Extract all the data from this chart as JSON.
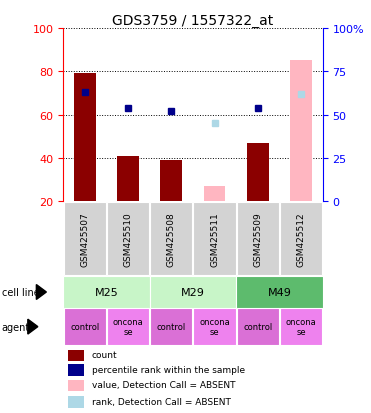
{
  "title": "GDS3759 / 1557322_at",
  "samples": [
    "GSM425507",
    "GSM425510",
    "GSM425508",
    "GSM425511",
    "GSM425509",
    "GSM425512"
  ],
  "counts": [
    79,
    41,
    39,
    null,
    47,
    null
  ],
  "percentile_ranks": [
    63,
    54,
    52,
    null,
    54,
    null
  ],
  "absent_counts": [
    null,
    null,
    null,
    27,
    null,
    85
  ],
  "absent_ranks": [
    null,
    null,
    null,
    45,
    null,
    62
  ],
  "cell_line_labels": [
    "M25",
    "M29",
    "M49"
  ],
  "cell_line_spans": [
    [
      0,
      2
    ],
    [
      2,
      4
    ],
    [
      4,
      6
    ]
  ],
  "cell_line_colors": [
    "#c8f5c8",
    "#c8f5c8",
    "#5dbb6d"
  ],
  "agent_labels": [
    "control",
    "oncona\nse",
    "control",
    "oncona\nse",
    "control",
    "oncona\nse"
  ],
  "agent_colors": [
    "#da70d6",
    "#ee82ee",
    "#da70d6",
    "#ee82ee",
    "#da70d6",
    "#ee82ee"
  ],
  "ylim_left": [
    20,
    100
  ],
  "ylim_right": [
    0,
    100
  ],
  "yticks_left": [
    20,
    40,
    60,
    80,
    100
  ],
  "yticks_right": [
    0,
    25,
    50,
    75,
    100
  ],
  "yticklabels_right": [
    "0",
    "25",
    "50",
    "75",
    "100%"
  ],
  "bar_color_present": "#8b0000",
  "bar_color_absent": "#ffb6c1",
  "dot_color_present": "#00008b",
  "dot_color_absent": "#add8e6",
  "sample_bg_color": "#d3d3d3",
  "background_color": "#ffffff",
  "legend_items": [
    {
      "color": "#8b0000",
      "label": "count"
    },
    {
      "color": "#00008b",
      "label": "percentile rank within the sample"
    },
    {
      "color": "#ffb6c1",
      "label": "value, Detection Call = ABSENT"
    },
    {
      "color": "#add8e6",
      "label": "rank, Detection Call = ABSENT"
    }
  ]
}
